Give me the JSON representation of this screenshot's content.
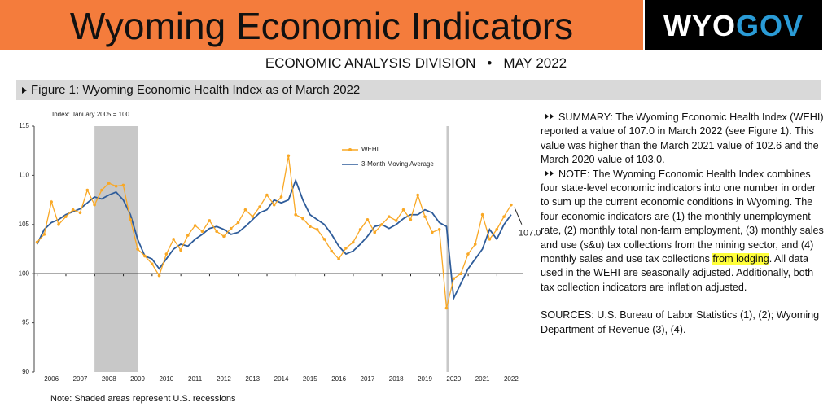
{
  "header": {
    "title": "Wyoming Economic Indicators",
    "logo_left": "WYO",
    "logo_right": "GOV",
    "subtitle_left": "ECONOMIC ANALYSIS DIVISION",
    "separator": "•",
    "subtitle_right": "MAY 2022"
  },
  "figure_title": "Figure 1: Wyoming Economic Health Index as of March 2022",
  "chart_data": {
    "type": "line",
    "y_label": "Index: January 2005 = 100",
    "x": [
      2005.5,
      2005.75,
      2006,
      2006.25,
      2006.5,
      2006.75,
      2007,
      2007.25,
      2007.5,
      2007.75,
      2008,
      2008.25,
      2008.5,
      2008.75,
      2009,
      2009.25,
      2009.5,
      2009.75,
      2010,
      2010.25,
      2010.5,
      2010.75,
      2011,
      2011.25,
      2011.5,
      2011.75,
      2012,
      2012.25,
      2012.5,
      2012.75,
      2013,
      2013.25,
      2013.5,
      2013.75,
      2014,
      2014.25,
      2014.5,
      2014.75,
      2015,
      2015.25,
      2015.5,
      2015.75,
      2016,
      2016.25,
      2016.5,
      2016.75,
      2017,
      2017.25,
      2017.5,
      2017.75,
      2018,
      2018.25,
      2018.5,
      2018.75,
      2019,
      2019.25,
      2019.5,
      2019.75,
      2020,
      2020.25,
      2020.5,
      2020.75,
      2021,
      2021.25,
      2021.5,
      2021.75,
      2022
    ],
    "series": [
      {
        "name": "WEHI",
        "color": "#f9a825",
        "marker": true,
        "values": [
          103.2,
          104.0,
          107.3,
          105.0,
          105.8,
          106.5,
          106.2,
          108.5,
          107.0,
          108.5,
          109.2,
          108.9,
          109.0,
          105.5,
          102.5,
          101.8,
          101.0,
          99.8,
          102.0,
          103.5,
          102.4,
          103.9,
          104.9,
          104.3,
          105.4,
          104.3,
          103.8,
          104.6,
          105.2,
          106.5,
          105.8,
          106.8,
          108.0,
          107.0,
          107.8,
          112.0,
          106.0,
          105.6,
          104.8,
          104.5,
          103.5,
          102.3,
          101.5,
          102.6,
          103.2,
          104.5,
          105.5,
          104.2,
          105.0,
          105.8,
          105.4,
          106.5,
          105.5,
          108.0,
          105.8,
          104.2,
          104.5,
          96.5,
          99.5,
          100.0,
          102.0,
          103.0,
          106.0,
          103.5,
          104.5,
          105.8,
          107.0
        ]
      },
      {
        "name": "3-Month Moving Average",
        "color": "#2e5c9a",
        "marker": false,
        "values": [
          103.0,
          104.5,
          105.2,
          105.5,
          106.0,
          106.3,
          106.6,
          107.2,
          107.8,
          107.6,
          108.0,
          108.3,
          107.5,
          106.0,
          103.5,
          101.8,
          101.5,
          100.5,
          101.5,
          102.5,
          103.0,
          102.8,
          103.5,
          104.0,
          104.6,
          104.8,
          104.5,
          104.0,
          104.2,
          104.8,
          105.5,
          106.2,
          106.5,
          107.5,
          107.2,
          107.5,
          109.5,
          107.5,
          106.0,
          105.5,
          105.0,
          104.0,
          102.8,
          102.0,
          102.3,
          103.0,
          103.8,
          104.8,
          105.0,
          104.6,
          105.0,
          105.6,
          106.0,
          106.0,
          106.5,
          106.2,
          105.2,
          104.8,
          97.5,
          99.0,
          100.5,
          101.5,
          102.5,
          104.5,
          103.5,
          105.0,
          106.0
        ]
      }
    ],
    "end_label": {
      "value": 107,
      "label": "107.0"
    },
    "recessions": [
      [
        2007.5,
        2009.0
      ],
      [
        2019.75,
        2019.85
      ]
    ],
    "xlim": [
      2005.4,
      2022.4
    ],
    "xticks": [
      2006,
      2007,
      2008,
      2009,
      2010,
      2011,
      2012,
      2013,
      2014,
      2015,
      2016,
      2017,
      2018,
      2019,
      2020,
      2021,
      2022
    ],
    "ylim": [
      90,
      115
    ],
    "yticks": [
      90,
      95,
      100,
      105,
      110,
      115
    ],
    "baseline": 100,
    "legend": "upper right"
  },
  "summary": {
    "p1": "SUMMARY: The Wyoming Economic Health Index (WEHI) reported a value of 107.0 in March 2022 (see Figure 1). This value was higher than the March 2021 value of 102.6 and the March 2020 value of 103.0.",
    "p2_before": "NOTE: The Wyoming Economic Health Index combines four state-level economic indicators into one number in order to sum up the current economic conditions in Wyoming. The four economic indicators are (1) the monthly unemployment rate, (2) monthly total non-farm employment, (3) monthly sales and use (s&u) tax collections from the mining sector, and (4) monthly sales and use tax collections ",
    "p2_highlight": "from lodging",
    "p2_after": ". All data used in the WEHI are seasonally adjusted. Additionally, both tax collection indicators are inflation adjusted.",
    "sources": "SOURCES: U.S. Bureau of Labor Statistics (1), (2); Wyoming Department of Revenue (3), (4)."
  },
  "note": "Note: Shaded areas represent U.S. recessions"
}
